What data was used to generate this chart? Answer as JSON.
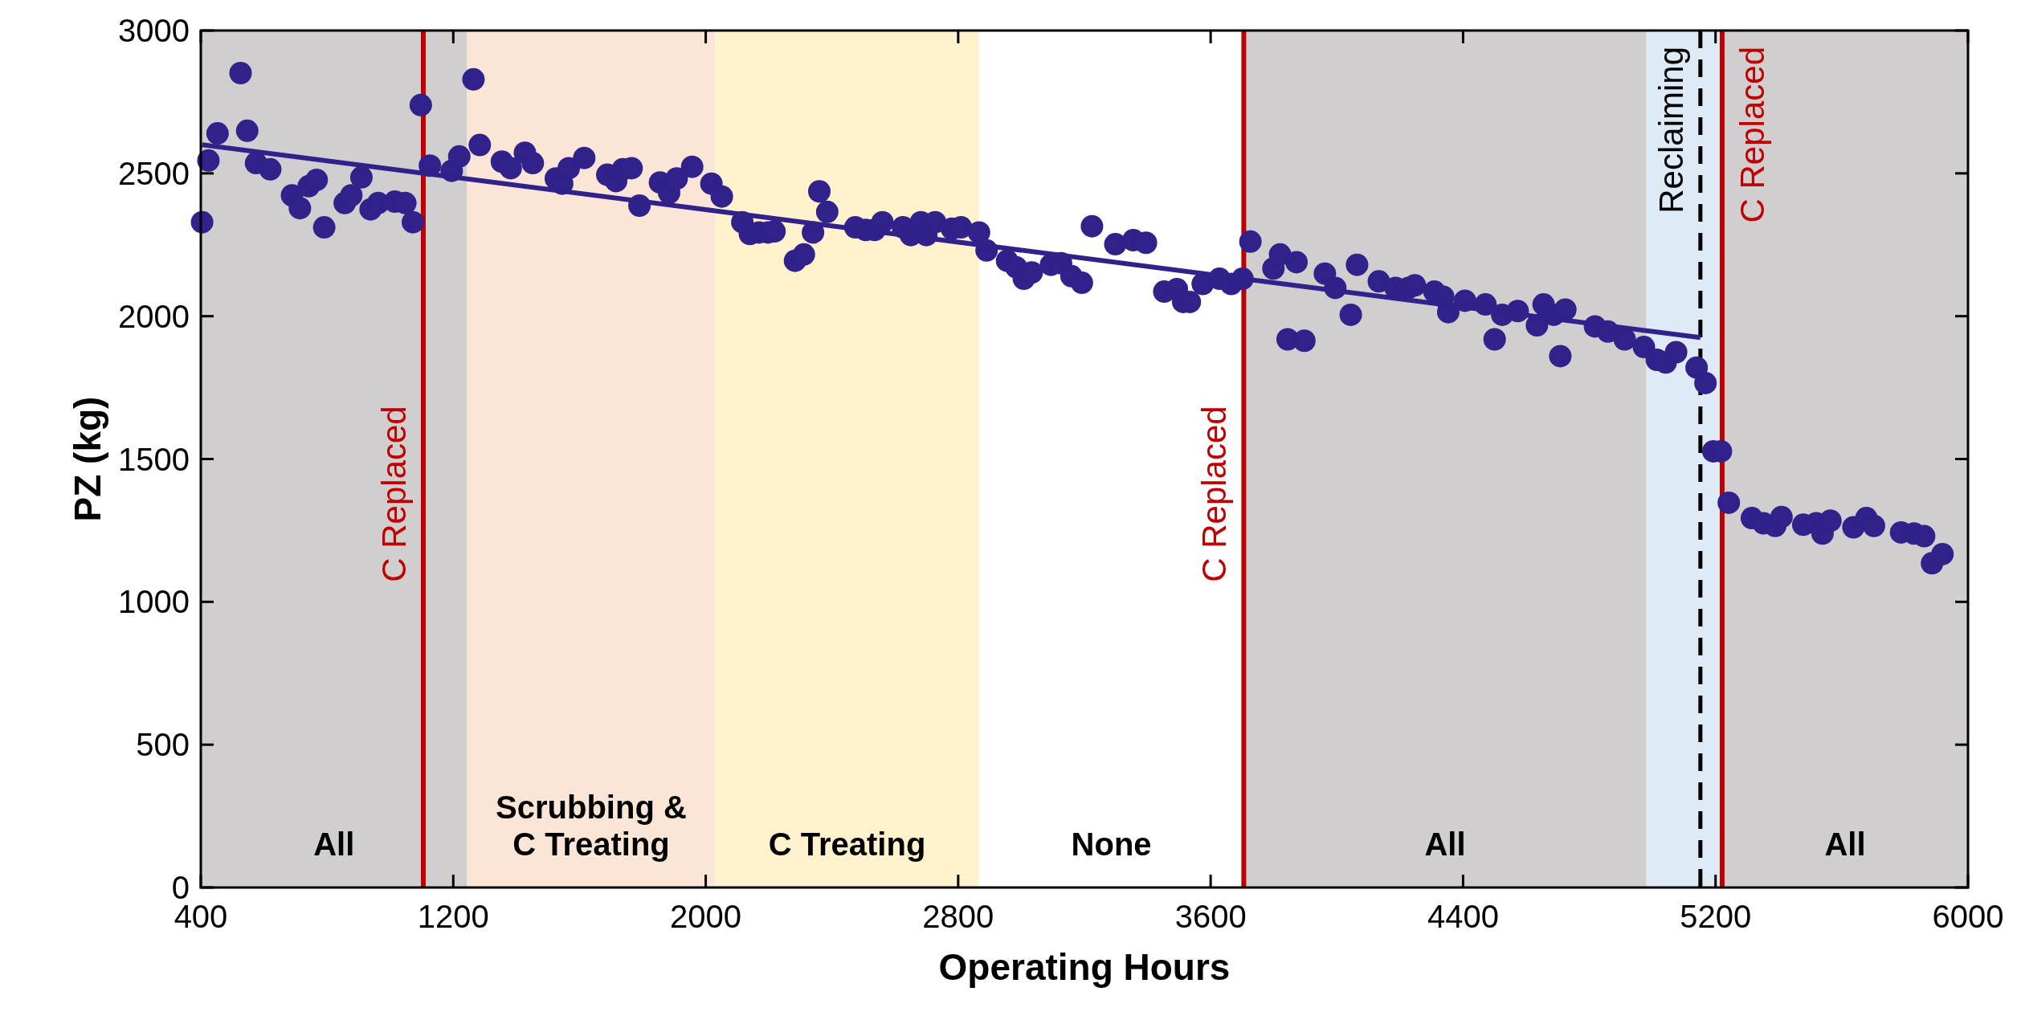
{
  "chart_data": {
    "type": "scatter",
    "xlabel": "Operating Hours",
    "ylabel": "PZ (kg)",
    "xlim": [
      400,
      6000
    ],
    "xticks": [
      400,
      1200,
      2000,
      2800,
      3600,
      4400,
      5200,
      6000
    ],
    "ylim": [
      0,
      3000
    ],
    "yticks": [
      0,
      500,
      1000,
      1500,
      2000,
      2500,
      3000
    ],
    "series": [
      {
        "color": "#31218a",
        "marker": "circle",
        "x": [
          404,
          424,
          453,
          526,
          547,
          575,
          620,
          689,
          714,
          742,
          767,
          791,
          856,
          877,
          909,
          938,
          962,
          1015,
          1048,
          1072,
          1097,
          1126,
          1195,
          1219,
          1264,
          1284,
          1354,
          1382,
          1427,
          1452,
          1525,
          1545,
          1566,
          1615,
          1688,
          1716,
          1737,
          1765,
          1790,
          1855,
          1884,
          1908,
          1957,
          2018,
          2051,
          2116,
          2140,
          2169,
          2197,
          2218,
          2283,
          2311,
          2340,
          2360,
          2385,
          2474,
          2507,
          2535,
          2560,
          2625,
          2650,
          2682,
          2699,
          2727,
          2780,
          2809,
          2866,
          2890,
          2955,
          2984,
          3008,
          3033,
          3094,
          3126,
          3159,
          3192,
          3224,
          3298,
          3355,
          3395,
          3453,
          3493,
          3513,
          3534,
          3575,
          3628,
          3665,
          3701,
          3726,
          3799,
          3820,
          3844,
          3872,
          3897,
          3962,
          3995,
          4044,
          4064,
          4133,
          4186,
          4227,
          4247,
          4309,
          4337,
          4353,
          4406,
          4471,
          4500,
          4524,
          4573,
          4634,
          4655,
          4687,
          4708,
          4724,
          4818,
          4859,
          4912,
          4973,
          5014,
          5042,
          5075,
          5140,
          5168,
          5193,
          5217,
          5242,
          5315,
          5352,
          5389,
          5409,
          5478,
          5519,
          5539,
          5564,
          5637,
          5678,
          5702,
          5788,
          5829,
          5861,
          5886,
          5919
        ],
        "values": [
          2329,
          2545,
          2640,
          2851,
          2649,
          2536,
          2514,
          2423,
          2378,
          2455,
          2477,
          2311,
          2396,
          2423,
          2486,
          2374,
          2396,
          2401,
          2396,
          2329,
          2739,
          2527,
          2509,
          2559,
          2829,
          2599,
          2541,
          2518,
          2572,
          2536,
          2482,
          2464,
          2518,
          2554,
          2495,
          2473,
          2514,
          2518,
          2387,
          2468,
          2432,
          2482,
          2523,
          2464,
          2419,
          2329,
          2288,
          2293,
          2293,
          2297,
          2194,
          2216,
          2293,
          2437,
          2365,
          2311,
          2302,
          2302,
          2329,
          2311,
          2284,
          2329,
          2284,
          2329,
          2306,
          2311,
          2293,
          2230,
          2194,
          2171,
          2131,
          2153,
          2180,
          2185,
          2140,
          2117,
          2315,
          2252,
          2266,
          2257,
          2086,
          2095,
          2050,
          2050,
          2113,
          2131,
          2113,
          2131,
          2261,
          2167,
          2216,
          1919,
          2189,
          1914,
          2149,
          2099,
          2005,
          2180,
          2122,
          2099,
          2099,
          2108,
          2086,
          2068,
          2014,
          2054,
          2041,
          1919,
          2005,
          2018,
          1968,
          2041,
          2005,
          1860,
          2023,
          1964,
          1946,
          1919,
          1892,
          1847,
          1838,
          1874,
          1820,
          1766,
          1527,
          1527,
          1347,
          1293,
          1275,
          1266,
          1297,
          1270,
          1275,
          1239,
          1284,
          1261,
          1293,
          1266,
          1243,
          1239,
          1230,
          1135,
          1167
        ]
      },
      {
        "type": "line",
        "color": "#31218a",
        "x": [
          404,
          5152
        ],
        "values": [
          2600,
          1925
        ]
      }
    ],
    "bands": [
      {
        "axis": "x",
        "from": 400,
        "to": 1244,
        "label": "All",
        "color": "#d0cece"
      },
      {
        "axis": "x",
        "from": 1244,
        "to": 2030,
        "label": "Scrubbing & C Treating",
        "color": "#fbe5d6"
      },
      {
        "axis": "x",
        "from": 2030,
        "to": 2866,
        "label": "C Treating",
        "color": "#fff2cc"
      },
      {
        "axis": "x",
        "from": 2866,
        "to": 3705,
        "label": "None",
        "color": "#ffffff"
      },
      {
        "axis": "x",
        "from": 3705,
        "to": 4981,
        "label": "All",
        "color": "#d0cece"
      },
      {
        "axis": "x",
        "from": 4981,
        "to": 5221,
        "color": "#deebf7"
      },
      {
        "axis": "x",
        "from": 5221,
        "to": 6000,
        "label": "All",
        "color": "#d0cece"
      }
    ],
    "ref_lines": [
      {
        "axis": "x",
        "value": 1105,
        "label": "C Replaced",
        "color": "#c00000",
        "line_style": "solid"
      },
      {
        "axis": "x",
        "value": 3705,
        "label": "C Replaced",
        "color": "#c00000",
        "line_style": "solid"
      },
      {
        "axis": "x",
        "value": 5152,
        "label": "Reclaiming",
        "color": "#000000",
        "line_style": "dashed"
      },
      {
        "axis": "x",
        "value": 5221,
        "label": "C Replaced",
        "color": "#c00000",
        "line_style": "solid"
      }
    ]
  }
}
